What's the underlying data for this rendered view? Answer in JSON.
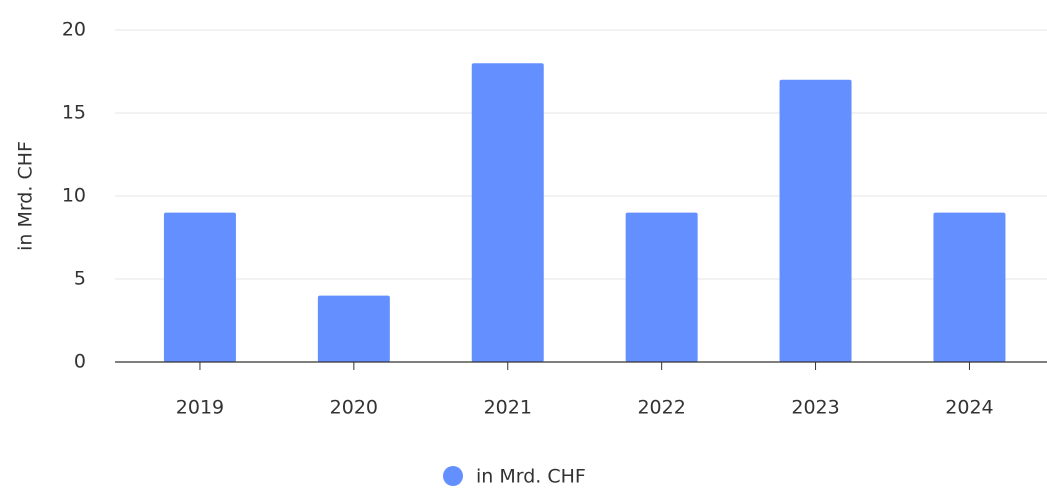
{
  "chart_data": {
    "type": "bar",
    "y_label": "in Mrd. CHF",
    "categories": [
      "2019",
      "2020",
      "2021",
      "2022",
      "2023",
      "2024"
    ],
    "series": [
      {
        "name": "in Mrd. CHF",
        "color": "#648fff",
        "values": [
          9,
          4,
          18,
          9,
          17,
          9
        ]
      }
    ],
    "ylim": [
      0,
      20
    ],
    "yticks": [
      0,
      5,
      10,
      15,
      20
    ],
    "grid": true
  }
}
